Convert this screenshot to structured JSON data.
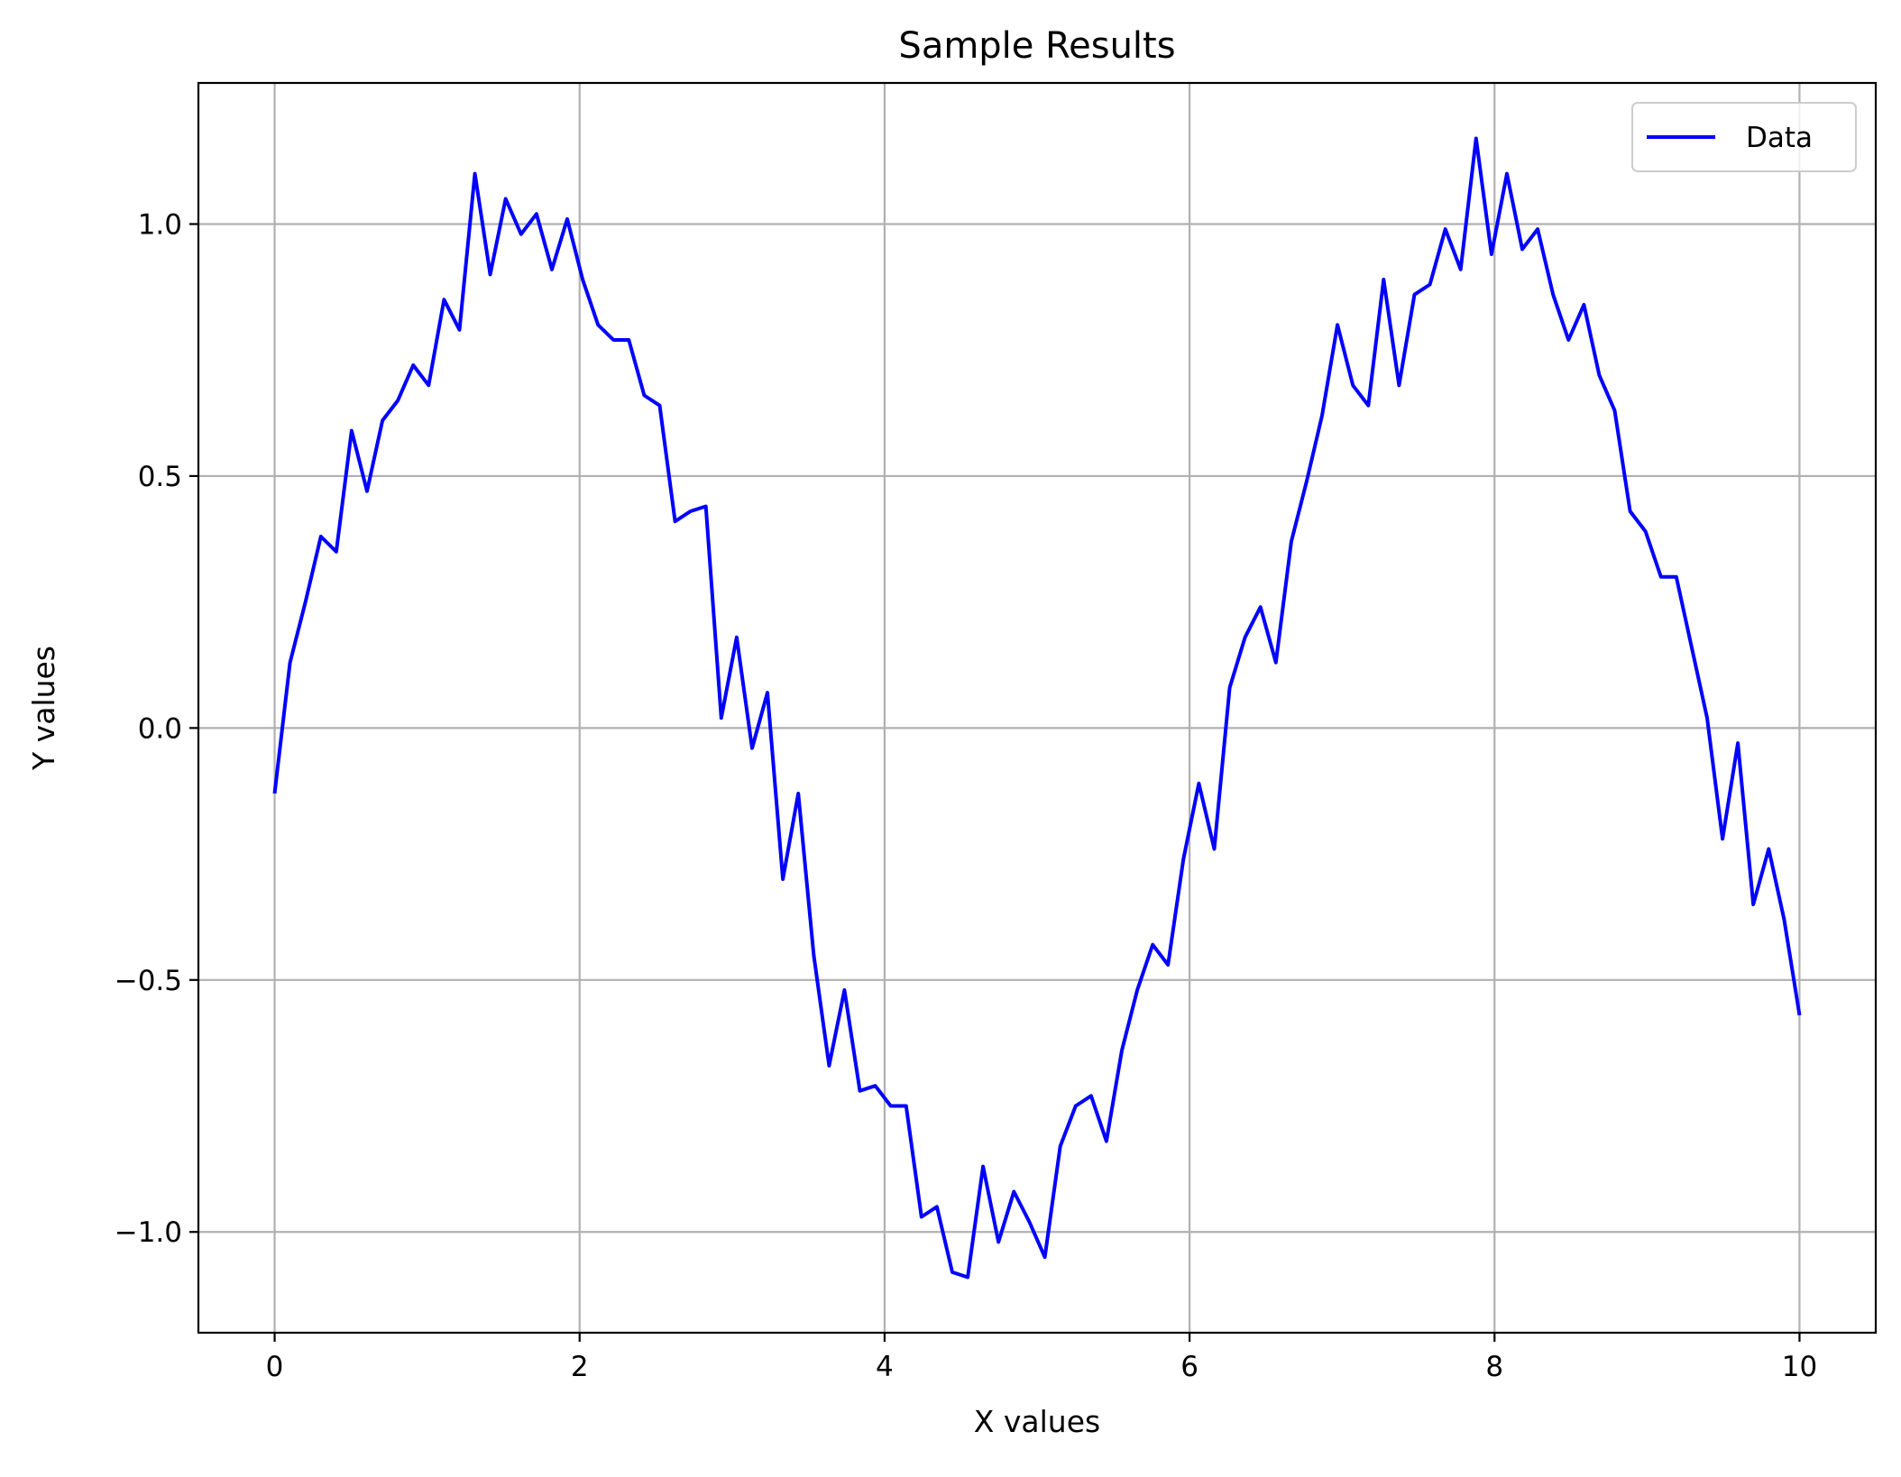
{
  "chart_data": {
    "type": "line",
    "title": "Sample Results",
    "xlabel": "X values",
    "ylabel": "Y values",
    "xlim": [
      -0.5,
      10.5
    ],
    "ylim": [
      -1.2,
      1.28
    ],
    "xticks": [
      0,
      2,
      4,
      6,
      8,
      10
    ],
    "xtick_labels": [
      "0",
      "2",
      "4",
      "6",
      "8",
      "10"
    ],
    "yticks": [
      -1.0,
      -0.5,
      0.0,
      0.5,
      1.0
    ],
    "ytick_labels": [
      "−1.0",
      "−0.5",
      "0.0",
      "0.5",
      "1.0"
    ],
    "grid": true,
    "legend": {
      "placement": "top-right",
      "entries": [
        "Data"
      ]
    },
    "series": [
      {
        "name": "Data",
        "color": "#0000ff",
        "x": [
          0,
          0.101,
          0.202,
          0.303,
          0.404,
          0.505,
          0.606,
          0.707,
          0.808,
          0.909,
          1.01,
          1.111,
          1.212,
          1.313,
          1.414,
          1.515,
          1.616,
          1.717,
          1.818,
          1.919,
          2.02,
          2.121,
          2.222,
          2.323,
          2.424,
          2.525,
          2.626,
          2.727,
          2.828,
          2.929,
          3.03,
          3.131,
          3.232,
          3.333,
          3.434,
          3.535,
          3.636,
          3.737,
          3.838,
          3.939,
          4.04,
          4.141,
          4.242,
          4.343,
          4.444,
          4.545,
          4.646,
          4.747,
          4.848,
          4.949,
          5.051,
          5.152,
          5.253,
          5.354,
          5.455,
          5.556,
          5.657,
          5.758,
          5.859,
          5.96,
          6.061,
          6.162,
          6.263,
          6.364,
          6.465,
          6.566,
          6.667,
          6.768,
          6.869,
          6.97,
          7.071,
          7.172,
          7.273,
          7.374,
          7.475,
          7.576,
          7.677,
          7.778,
          7.879,
          7.98,
          8.081,
          8.182,
          8.283,
          8.384,
          8.485,
          8.586,
          8.687,
          8.788,
          8.889,
          8.99,
          9.091,
          9.192,
          9.293,
          9.394,
          9.495,
          9.596,
          9.697,
          9.798,
          9.899,
          10
        ],
        "y": [
          -0.13,
          0.13,
          0.25,
          0.38,
          0.35,
          0.59,
          0.47,
          0.61,
          0.65,
          0.72,
          0.68,
          0.85,
          0.79,
          1.1,
          0.9,
          1.05,
          0.98,
          1.02,
          0.91,
          1.01,
          0.89,
          0.8,
          0.77,
          0.77,
          0.66,
          0.64,
          0.41,
          0.43,
          0.44,
          0.02,
          0.18,
          -0.04,
          0.07,
          -0.3,
          -0.13,
          -0.45,
          -0.67,
          -0.52,
          -0.72,
          -0.71,
          -0.75,
          -0.75,
          -0.97,
          -0.95,
          -1.08,
          -1.09,
          -0.87,
          -1.02,
          -0.92,
          -0.98,
          -1.05,
          -0.83,
          -0.75,
          -0.73,
          -0.82,
          -0.64,
          -0.52,
          -0.43,
          -0.47,
          -0.26,
          -0.11,
          -0.24,
          0.08,
          0.18,
          0.24,
          0.13,
          0.37,
          0.49,
          0.62,
          0.8,
          0.68,
          0.64,
          0.89,
          0.68,
          0.86,
          0.88,
          0.99,
          0.91,
          1.17,
          0.94,
          1.1,
          0.95,
          0.99,
          0.86,
          0.77,
          0.84,
          0.7,
          0.63,
          0.43,
          0.39,
          0.3,
          0.3,
          0.16,
          0.02,
          -0.22,
          -0.03,
          -0.35,
          -0.24,
          -0.38,
          -0.57
        ]
      }
    ]
  }
}
